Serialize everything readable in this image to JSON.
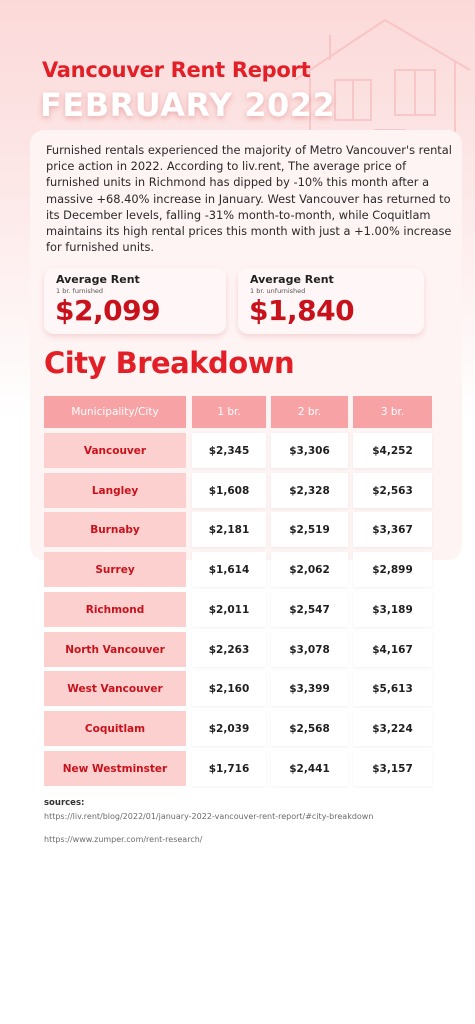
{
  "title": "Vancouver Rent Report",
  "subtitle": "FEBRUARY 2022",
  "intro": "Furnished rentals experienced the majority of Metro Vancouver's rental price action in 2022. According to liv.rent, The average price of furnished units in Richmond has dipped by -10% this month after a massive +68.40% increase in January. West Vancouver has returned to its December levels, falling -31% month-to-month, while Coquitlam maintains its high rental prices this month with just a +1.00% increase for furnished units.",
  "stats": [
    {
      "label": "Average Rent",
      "sub": "1 br. furnished",
      "value": "$2,099"
    },
    {
      "label": "Average Rent",
      "sub": "1 br. unfurnished",
      "value": "$1,840"
    }
  ],
  "section_title": "City Breakdown",
  "table": {
    "headers": [
      "Municipality/City",
      "1 br.",
      "2 br.",
      "3 br."
    ],
    "rows": [
      [
        "Vancouver",
        "$2,345",
        "$3,306",
        "$4,252"
      ],
      [
        "Langley",
        "$1,608",
        "$2,328",
        "$2,563"
      ],
      [
        "Burnaby",
        "$2,181",
        "$2,519",
        "$3,367"
      ],
      [
        "Surrey",
        "$1,614",
        "$2,062",
        "$2,899"
      ],
      [
        "Richmond",
        "$2,011",
        "$2,547",
        "$3,189"
      ],
      [
        "North Vancouver",
        "$2,263",
        "$3,078",
        "$4,167"
      ],
      [
        "West Vancouver",
        "$2,160",
        "$3,399",
        "$5,613"
      ],
      [
        "Coquitlam",
        "$2,039",
        "$2,568",
        "$3,224"
      ],
      [
        "New Westminster",
        "$1,716",
        "$2,441",
        "$3,157"
      ]
    ]
  },
  "sources_label": "sources:",
  "sources": [
    "https://liv.rent/blog/2022/01/january-2022-vancouver-rent-report/#city-breakdown",
    "https://www.zumper.com/rent-research/"
  ],
  "colors": {
    "accent": "#e21f26",
    "header": "#f7a3a6",
    "city_cell": "#fdd0d0"
  }
}
